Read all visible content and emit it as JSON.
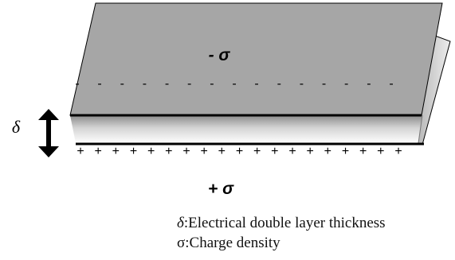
{
  "diagram": {
    "top_charge_label": "- σ",
    "bottom_charge_label": "+ σ",
    "thickness_symbol": "δ",
    "minus_marks": [
      "-",
      "-",
      "-",
      "-",
      "-",
      "-",
      "-",
      "-",
      "-",
      "-",
      "-",
      "-",
      "-",
      "-",
      "-"
    ],
    "plus_marks": [
      "+",
      "+",
      "+",
      "+",
      "+",
      "+",
      "+",
      "+",
      "+",
      "+",
      "+",
      "+",
      "+",
      "+",
      "+",
      "+",
      "+",
      "+",
      "+"
    ]
  },
  "legend": {
    "delta_symbol": "δ",
    "delta_text": ":Electrical double layer thickness",
    "sigma_symbol": "σ",
    "sigma_text": ":Charge density"
  }
}
